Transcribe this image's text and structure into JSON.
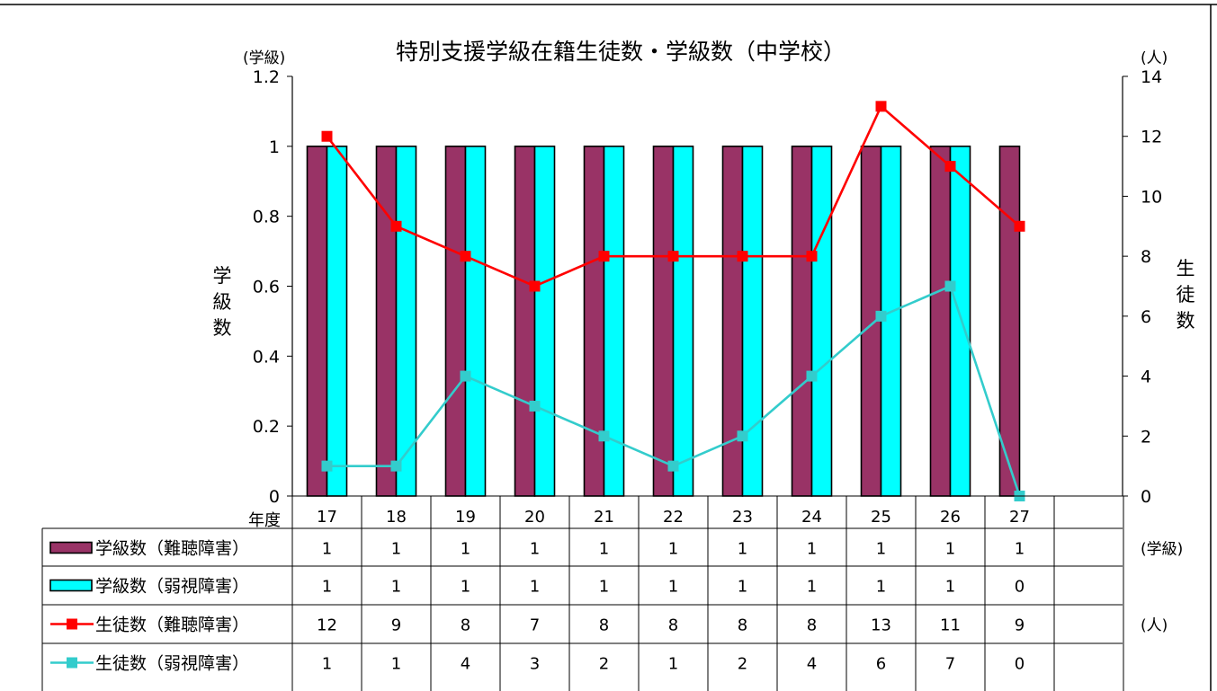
{
  "chart_data": {
    "type": "bar",
    "title": "特別支援学級在籍生徒数・学級数（中学校）",
    "left_unit": "(学級)",
    "right_unit": "(人)",
    "ylabel_left": "学級数",
    "ylabel_right": "生徒数",
    "xlabel": "年度",
    "ylim_left": [
      0,
      1.2
    ],
    "ylim_right": [
      0,
      14
    ],
    "left_ticks": [
      "0",
      "0.2",
      "0.4",
      "0.6",
      "0.8",
      "1",
      "1.2"
    ],
    "right_ticks": [
      "0",
      "2",
      "4",
      "6",
      "8",
      "10",
      "12",
      "14"
    ],
    "categories": [
      "17",
      "18",
      "19",
      "20",
      "21",
      "22",
      "23",
      "24",
      "25",
      "26",
      "27"
    ],
    "series": [
      {
        "name": "学級数（難聴障害）",
        "kind": "bar",
        "axis": "left",
        "color": "#993366",
        "values": [
          1,
          1,
          1,
          1,
          1,
          1,
          1,
          1,
          1,
          1,
          1
        ]
      },
      {
        "name": "学級数（弱視障害）",
        "kind": "bar",
        "axis": "left",
        "color": "#00FFFF",
        "values": [
          1,
          1,
          1,
          1,
          1,
          1,
          1,
          1,
          1,
          1,
          0
        ]
      },
      {
        "name": "生徒数（難聴障害）",
        "kind": "line",
        "axis": "right",
        "color": "#FF0000",
        "values": [
          12,
          9,
          8,
          7,
          8,
          8,
          8,
          8,
          13,
          11,
          9
        ]
      },
      {
        "name": "生徒数（弱視障害）",
        "kind": "line",
        "axis": "right",
        "color": "#33CCCC",
        "values": [
          1,
          1,
          4,
          3,
          2,
          1,
          2,
          4,
          6,
          7,
          0
        ]
      }
    ],
    "table_units": [
      "(学級)",
      "(人)"
    ],
    "grid": false,
    "legend": "data-table"
  }
}
